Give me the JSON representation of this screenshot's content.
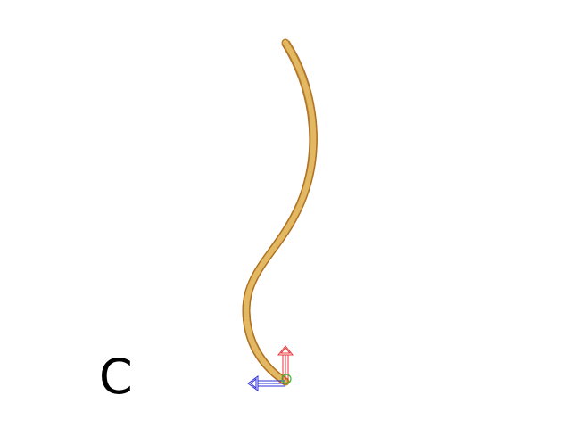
{
  "viewport": {
    "panel_label": "C"
  },
  "colors": {
    "background": "#ffffff",
    "tube": "#c8882a",
    "tube_mesh": "#e0b35c",
    "axis_up": "#e8343a",
    "axis_left": "#2c2cd8",
    "axis_origin": "#33bb33"
  },
  "icons": {
    "model": "curved-tube-wireframe-icon",
    "gizmo": "transform-axis-gizmo-icon"
  }
}
